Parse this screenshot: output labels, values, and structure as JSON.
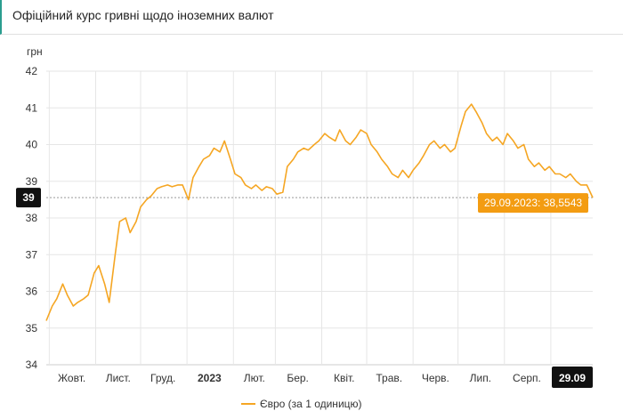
{
  "header": {
    "title": "Офіційний курс гривні щодо іноземних валют"
  },
  "colors": {
    "series": "#f5a623",
    "tooltip_bg": "#f39c12",
    "badge_bg": "#111111",
    "grid": "#e6e6e6",
    "accent_border": "#2a9d8f"
  },
  "chart_data": {
    "type": "line",
    "ylabel": "грн",
    "ylim": [
      34,
      42
    ],
    "y_ticks": [
      "34",
      "35",
      "36",
      "37",
      "38",
      "39",
      "40",
      "41",
      "42"
    ],
    "x_tick_labels": [
      {
        "label": "Жовт.",
        "bold": false
      },
      {
        "label": "Лист.",
        "bold": false
      },
      {
        "label": "Груд.",
        "bold": false
      },
      {
        "label": "2023",
        "bold": true
      },
      {
        "label": "Лют.",
        "bold": false
      },
      {
        "label": "Бер.",
        "bold": false
      },
      {
        "label": "Квіт.",
        "bold": false
      },
      {
        "label": "Трав.",
        "bold": false
      },
      {
        "label": "Черв.",
        "bold": false
      },
      {
        "label": "Лип.",
        "bold": false
      },
      {
        "label": "Серп.",
        "bold": false
      }
    ],
    "x_end_label": "29.09",
    "y_crosshair_label": "39",
    "crosshair_value": 38.5543,
    "tooltip": "29.09.2023: 38,5543",
    "series": [
      {
        "name": "Євро (за 1 одиницю)",
        "x": [
          "2022-09-29",
          "2022-10-03",
          "2022-10-06",
          "2022-10-10",
          "2022-10-13",
          "2022-10-17",
          "2022-10-20",
          "2022-10-24",
          "2022-10-27",
          "2022-10-31",
          "2022-11-03",
          "2022-11-07",
          "2022-11-10",
          "2022-11-14",
          "2022-11-17",
          "2022-11-21",
          "2022-11-24",
          "2022-11-28",
          "2022-12-01",
          "2022-12-05",
          "2022-12-08",
          "2022-12-12",
          "2022-12-15",
          "2022-12-19",
          "2022-12-22",
          "2022-12-26",
          "2022-12-29",
          "2023-01-02",
          "2023-01-05",
          "2023-01-09",
          "2023-01-12",
          "2023-01-16",
          "2023-01-19",
          "2023-01-23",
          "2023-01-26",
          "2023-01-30",
          "2023-02-02",
          "2023-02-06",
          "2023-02-09",
          "2023-02-13",
          "2023-02-16",
          "2023-02-20",
          "2023-02-23",
          "2023-02-27",
          "2023-03-02",
          "2023-03-06",
          "2023-03-09",
          "2023-03-13",
          "2023-03-16",
          "2023-03-20",
          "2023-03-23",
          "2023-03-27",
          "2023-03-30",
          "2023-04-03",
          "2023-04-06",
          "2023-04-10",
          "2023-04-13",
          "2023-04-17",
          "2023-04-20",
          "2023-04-24",
          "2023-04-27",
          "2023-05-01",
          "2023-05-04",
          "2023-05-08",
          "2023-05-11",
          "2023-05-15",
          "2023-05-18",
          "2023-05-22",
          "2023-05-25",
          "2023-05-29",
          "2023-06-01",
          "2023-06-05",
          "2023-06-08",
          "2023-06-12",
          "2023-06-15",
          "2023-06-19",
          "2023-06-22",
          "2023-06-26",
          "2023-06-29",
          "2023-07-03",
          "2023-07-06",
          "2023-07-10",
          "2023-07-13",
          "2023-07-17",
          "2023-07-20",
          "2023-07-24",
          "2023-07-27",
          "2023-07-31",
          "2023-08-03",
          "2023-08-07",
          "2023-08-10",
          "2023-08-14",
          "2023-08-17",
          "2023-08-21",
          "2023-08-24",
          "2023-08-28",
          "2023-08-31",
          "2023-09-04",
          "2023-09-07",
          "2023-09-11",
          "2023-09-14",
          "2023-09-18",
          "2023-09-21",
          "2023-09-25",
          "2023-09-29"
        ],
        "values": [
          35.2,
          35.6,
          35.8,
          36.2,
          35.9,
          35.6,
          35.7,
          35.8,
          35.9,
          36.5,
          36.7,
          36.2,
          35.7,
          37.0,
          37.9,
          38.0,
          37.6,
          37.9,
          38.3,
          38.5,
          38.6,
          38.8,
          38.85,
          38.9,
          38.85,
          38.9,
          38.9,
          38.5,
          39.1,
          39.4,
          39.6,
          39.7,
          39.9,
          39.8,
          40.1,
          39.6,
          39.2,
          39.1,
          38.9,
          38.8,
          38.9,
          38.75,
          38.85,
          38.8,
          38.65,
          38.7,
          39.4,
          39.6,
          39.8,
          39.9,
          39.85,
          40.0,
          40.1,
          40.3,
          40.2,
          40.1,
          40.4,
          40.1,
          40.0,
          40.2,
          40.4,
          40.3,
          40.0,
          39.8,
          39.6,
          39.4,
          39.2,
          39.1,
          39.3,
          39.1,
          39.3,
          39.5,
          39.7,
          40.0,
          40.1,
          39.9,
          40.0,
          39.8,
          39.9,
          40.5,
          40.9,
          41.1,
          40.9,
          40.6,
          40.3,
          40.1,
          40.2,
          40.0,
          40.3,
          40.1,
          39.9,
          40.0,
          39.6,
          39.4,
          39.5,
          39.3,
          39.4,
          39.2,
          39.2,
          39.1,
          39.2,
          39.0,
          38.9,
          38.9,
          38.5543
        ]
      }
    ],
    "grid": true,
    "legend_position": "bottom-center"
  }
}
